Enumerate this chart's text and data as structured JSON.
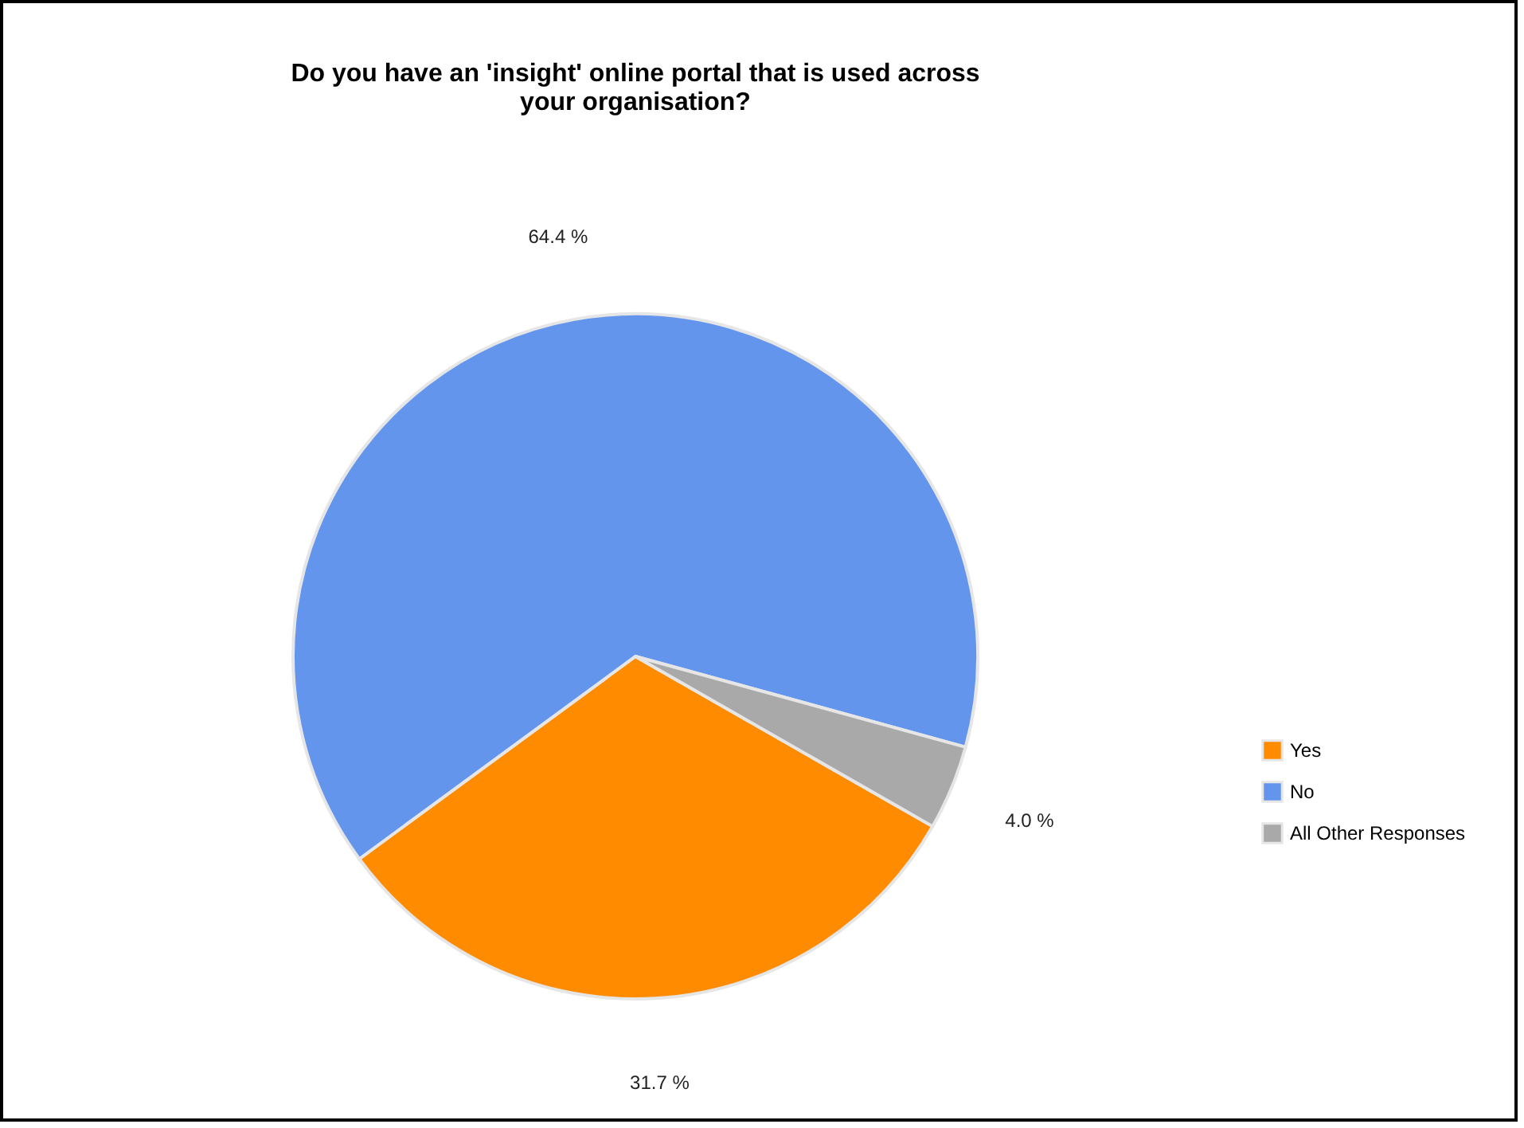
{
  "chart_data": {
    "type": "pie",
    "title": "Do you have an 'insight' online portal that is used across your organisation?",
    "categories": [
      "Yes",
      "No",
      "All Other Responses"
    ],
    "values": [
      31.7,
      64.4,
      4.0
    ],
    "colors": [
      "#ff8c00",
      "#6495ed",
      "#a9a9a9"
    ],
    "value_labels": [
      "31.7 %",
      "64.4 %",
      "4.0 %"
    ],
    "legend": "right"
  }
}
